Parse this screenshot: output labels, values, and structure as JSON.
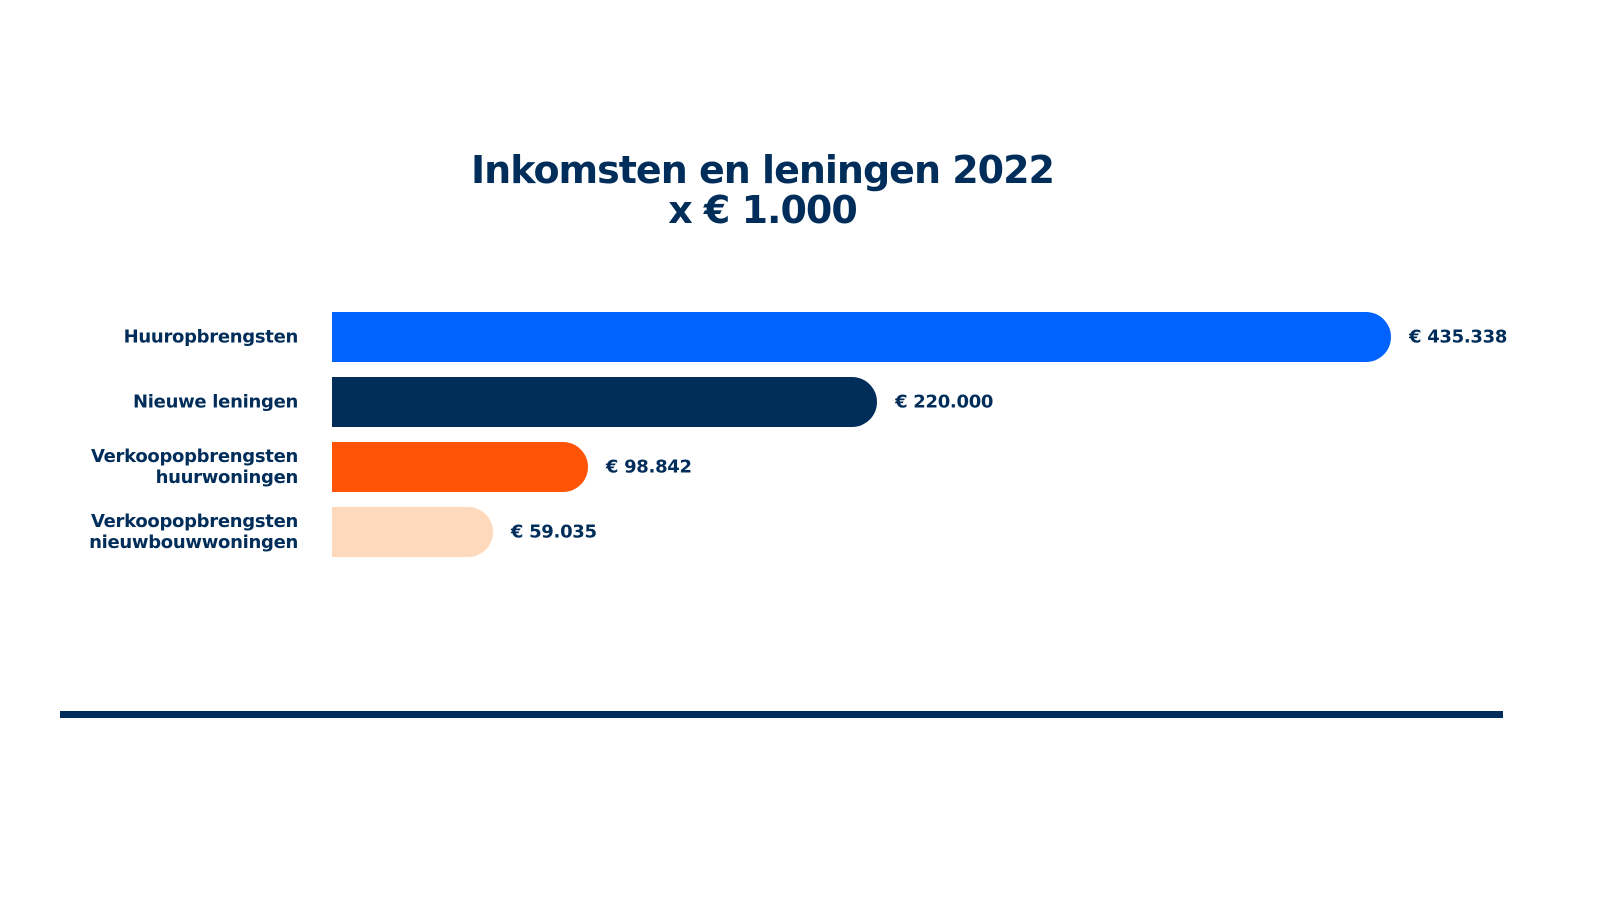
{
  "chart_data": {
    "type": "bar",
    "orientation": "horizontal",
    "title": "Inkomsten en leningen 2022",
    "subtitle": "x € 1.000",
    "categories": [
      "Huuropbrengsten",
      "Nieuwe leningen",
      "Verkoopopbrengsten huurwoningen",
      "Verkoopopbrengsten nieuwbouwwoningen"
    ],
    "category_lines": [
      [
        "Huuropbrengsten"
      ],
      [
        "Nieuwe leningen"
      ],
      [
        "Verkoopopbrengsten",
        "huurwoningen"
      ],
      [
        "Verkoopopbrengsten",
        "nieuwbouwwoningen"
      ]
    ],
    "values": [
      435338,
      220000,
      98842,
      59035
    ],
    "value_labels": [
      "€ 435.338",
      "€ 220.000",
      "€ 98.842",
      "€ 59.035"
    ],
    "colors": [
      "#0062ff",
      "#002d59",
      "#ff5405",
      "#ffd9bb"
    ],
    "xlabel": "",
    "ylabel": "",
    "grid": false
  }
}
